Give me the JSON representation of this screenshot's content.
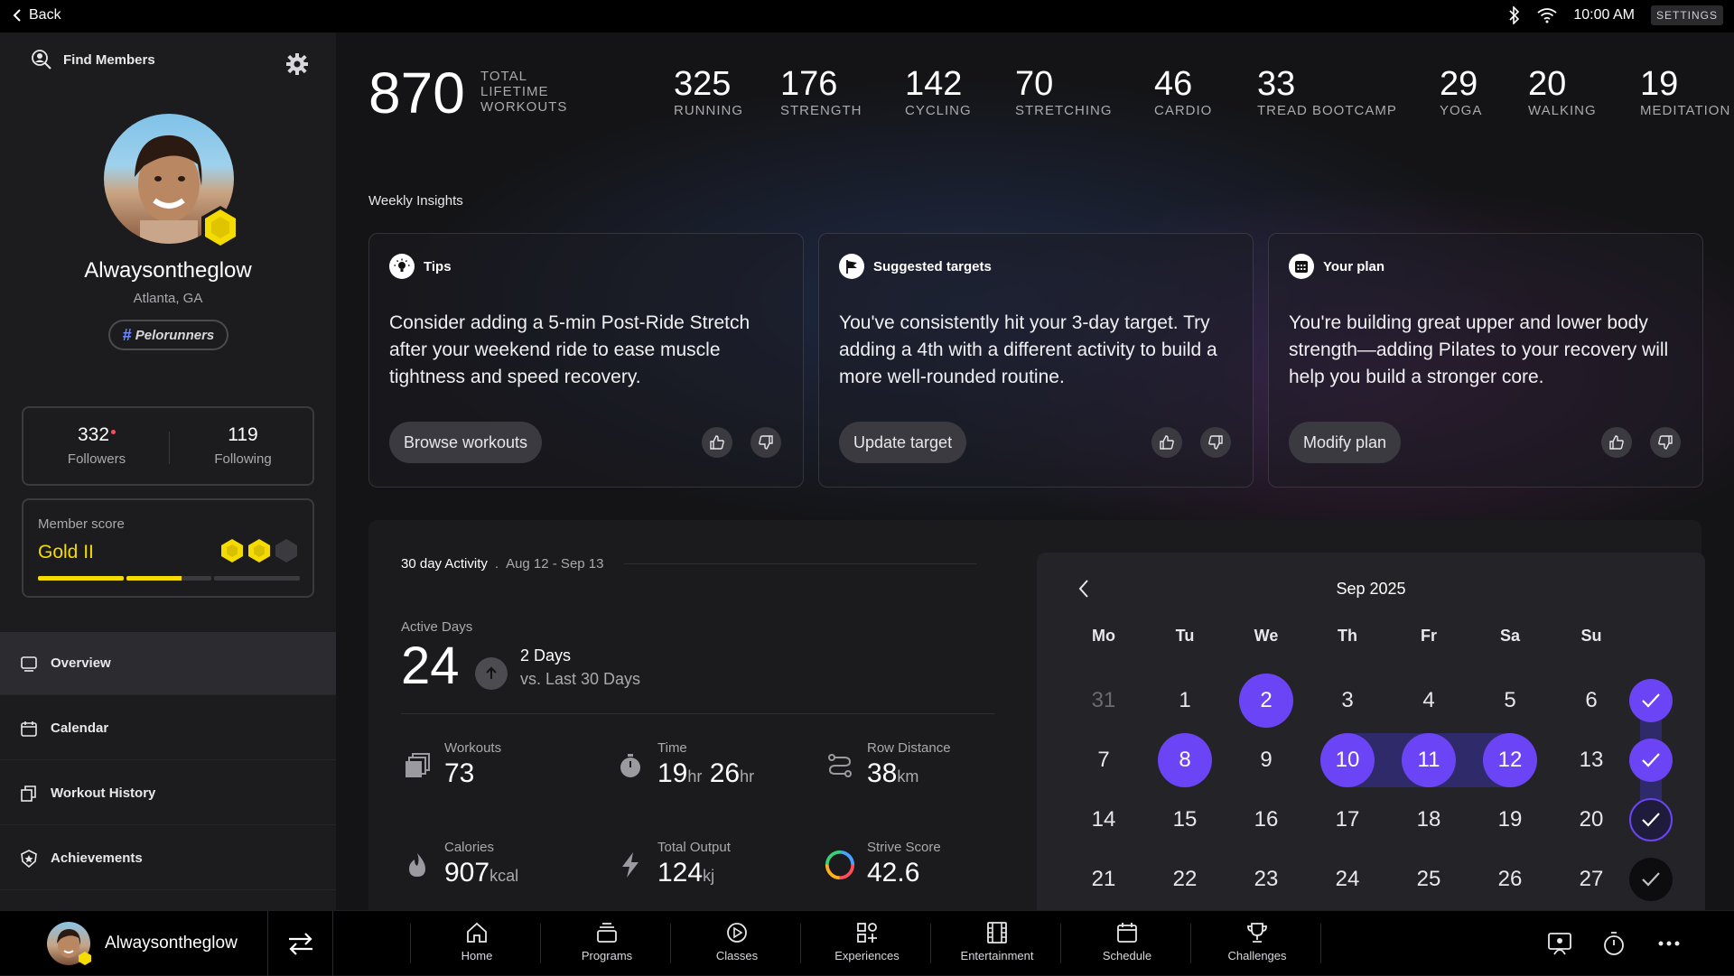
{
  "topbar": {
    "back_label": "Back",
    "time": "10:00 AM",
    "settings_label": "SETTINGS"
  },
  "sidebar": {
    "find_members": "Find Members",
    "username": "Alwaysontheglow",
    "location": "Atlanta, GA",
    "tag": "Pelorunners",
    "followers_count": "332",
    "followers_label": "Followers",
    "following_count": "119",
    "following_label": "Following",
    "member_score_label": "Member score",
    "member_score_value": "Gold II",
    "member_score_progress": 0.55,
    "nav": [
      {
        "label": "Overview"
      },
      {
        "label": "Calendar"
      },
      {
        "label": "Workout History"
      },
      {
        "label": "Achievements"
      }
    ]
  },
  "stats": {
    "total_value": "870",
    "total_label": "TOTAL LIFETIME WORKOUTS",
    "items": [
      {
        "value": "325",
        "label": "RUNNING"
      },
      {
        "value": "176",
        "label": "STRENGTH"
      },
      {
        "value": "142",
        "label": "CYCLING"
      },
      {
        "value": "70",
        "label": "STRETCHING"
      },
      {
        "value": "46",
        "label": "CARDIO"
      },
      {
        "value": "33",
        "label": "TREAD BOOTCAMP"
      },
      {
        "value": "29",
        "label": "YOGA"
      },
      {
        "value": "20",
        "label": "WALKING"
      },
      {
        "value": "19",
        "label": "MEDITATION"
      }
    ]
  },
  "insights": {
    "title": "Weekly Insights",
    "cards": [
      {
        "title": "Tips",
        "body": "Consider adding a 5-min Post-Ride Stretch after your weekend ride to ease muscle tightness and speed recovery.",
        "button": "Browse workouts"
      },
      {
        "title": "Suggested targets",
        "body": "You've consistently hit your 3-day target. Try adding a 4th with a different activity to build a more well-rounded routine.",
        "button": "Update target"
      },
      {
        "title": "Your plan",
        "body": "You're building great upper and lower body strength—adding Pilates to your recovery will help you build a stronger core.",
        "button": "Modify plan"
      }
    ]
  },
  "activity": {
    "title": "30 day Activity",
    "range": "Aug 12 - Sep 13",
    "active_days_label": "Active Days",
    "active_days_value": "24",
    "delta_value": "2 Days",
    "delta_label": "vs. Last 30 Days",
    "metrics": {
      "workouts": {
        "label": "Workouts",
        "value": "73"
      },
      "time": {
        "label": "Time",
        "h": "19",
        "h_unit": "hr",
        "m": "26",
        "m_unit": "hr"
      },
      "row": {
        "label": "Row Distance",
        "value": "38",
        "unit": "km"
      },
      "calories": {
        "label": "Calories",
        "value": "907",
        "unit": "kcal"
      },
      "output": {
        "label": "Total Output",
        "value": "124",
        "unit": "kj"
      },
      "strive": {
        "label": "Strive Score",
        "value": "42.6"
      }
    }
  },
  "calendar": {
    "title": "Sep 2025",
    "dow": [
      "Mo",
      "Tu",
      "We",
      "Th",
      "Fr",
      "Sa",
      "Su"
    ],
    "weeks": [
      [
        "31",
        "1",
        "2",
        "3",
        "4",
        "5",
        "6"
      ],
      [
        "7",
        "8",
        "9",
        "10",
        "11",
        "12",
        "13"
      ],
      [
        "14",
        "15",
        "16",
        "17",
        "18",
        "19",
        "20"
      ],
      [
        "21",
        "22",
        "23",
        "24",
        "25",
        "26",
        "27"
      ]
    ],
    "selected": [
      "2",
      "8",
      "10",
      "11",
      "12"
    ],
    "muted": [
      "31"
    ]
  },
  "bottombar": {
    "username": "Alwaysontheglow",
    "tabs": [
      {
        "label": "Home",
        "icon": "home-icon"
      },
      {
        "label": "Programs",
        "icon": "programs-icon"
      },
      {
        "label": "Classes",
        "icon": "classes-icon"
      },
      {
        "label": "Experiences",
        "icon": "experiences-icon"
      },
      {
        "label": "Entertainment",
        "icon": "entertainment-icon"
      },
      {
        "label": "Schedule",
        "icon": "schedule-icon"
      },
      {
        "label": "Challenges",
        "icon": "challenges-icon"
      }
    ]
  },
  "colors": {
    "accent": "#6b45f5",
    "gold": "#f5dc00",
    "badge_red": "#ff4a5a"
  }
}
